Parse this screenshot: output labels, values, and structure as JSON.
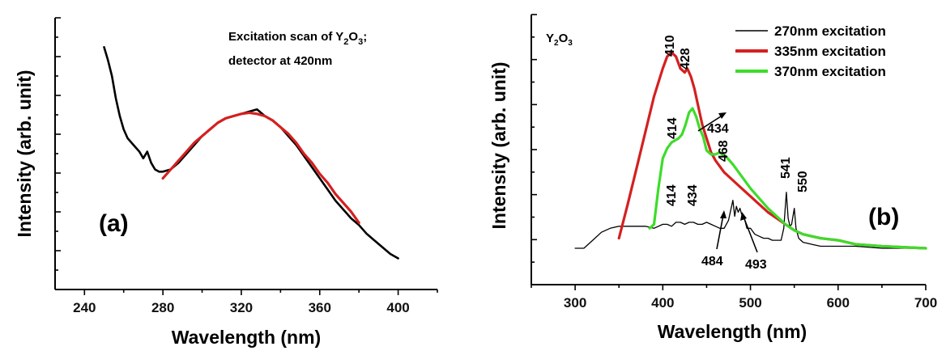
{
  "chart_data": [
    {
      "type": "line",
      "panel_label": "(a)",
      "xlabel": "Wavelength (nm)",
      "ylabel": "Intensity (arb. unit)",
      "xlim": [
        225,
        420
      ],
      "ylim": [
        0,
        1
      ],
      "x_ticks": [
        240,
        280,
        320,
        360,
        400
      ],
      "annotation": {
        "line1_prefix": "Excitation scan of Y",
        "sub1": "2",
        "mid": "O",
        "sub2": "3",
        "line1_suffix": ";",
        "line2": "detector at 420nm"
      },
      "series": [
        {
          "color": "#000000",
          "x": [
            250,
            252,
            254,
            256,
            258,
            260,
            262,
            264,
            266,
            268,
            270,
            272,
            274,
            276,
            278,
            280,
            284,
            288,
            292,
            296,
            300,
            304,
            308,
            312,
            316,
            320,
            324,
            328,
            332,
            336,
            340,
            344,
            348,
            352,
            356,
            360,
            364,
            368,
            372,
            376,
            380,
            384,
            388,
            392,
            396,
            400
          ],
          "y": [
            0.97,
            0.91,
            0.84,
            0.74,
            0.66,
            0.6,
            0.56,
            0.54,
            0.52,
            0.5,
            0.47,
            0.5,
            0.45,
            0.42,
            0.41,
            0.41,
            0.42,
            0.45,
            0.49,
            0.53,
            0.57,
            0.6,
            0.63,
            0.65,
            0.66,
            0.67,
            0.68,
            0.69,
            0.66,
            0.64,
            0.61,
            0.57,
            0.53,
            0.48,
            0.43,
            0.38,
            0.33,
            0.28,
            0.24,
            0.2,
            0.17,
            0.13,
            0.1,
            0.07,
            0.04,
            0.02
          ]
        },
        {
          "color": "#d42020",
          "x": [
            280,
            284,
            288,
            292,
            296,
            300,
            304,
            308,
            312,
            316,
            320,
            324,
            328,
            332,
            336,
            340,
            344,
            348,
            352,
            356,
            360,
            364,
            368,
            372,
            376,
            380
          ],
          "y": [
            0.38,
            0.42,
            0.46,
            0.5,
            0.54,
            0.57,
            0.6,
            0.63,
            0.65,
            0.66,
            0.67,
            0.675,
            0.67,
            0.66,
            0.64,
            0.61,
            0.58,
            0.54,
            0.49,
            0.45,
            0.4,
            0.36,
            0.31,
            0.27,
            0.23,
            0.18
          ]
        }
      ]
    },
    {
      "type": "line",
      "panel_label": "(b)",
      "corner_label": {
        "base": "Y",
        "sub1": "2",
        "mid": "O",
        "sub2": "3"
      },
      "xlabel": "Wavelength (nm)",
      "ylabel": "Intensity (arb. unit)",
      "xlim": [
        250,
        700
      ],
      "ylim": [
        0,
        1
      ],
      "x_ticks": [
        300,
        400,
        500,
        600,
        700
      ],
      "legend_position": "top-right",
      "series": [
        {
          "name": "270nm excitation",
          "color": "#000000",
          "x": [
            300,
            310,
            320,
            330,
            340,
            350,
            360,
            370,
            380,
            390,
            400,
            405,
            410,
            415,
            420,
            425,
            430,
            435,
            440,
            445,
            450,
            455,
            460,
            465,
            470,
            475,
            478,
            480,
            482,
            484,
            486,
            488,
            490,
            493,
            496,
            500,
            505,
            510,
            515,
            520,
            525,
            530,
            535,
            538,
            541,
            543,
            545,
            547,
            550,
            552,
            555,
            560,
            570,
            580,
            600,
            620,
            650,
            700
          ],
          "y": [
            0.0,
            0.0,
            0.04,
            0.08,
            0.1,
            0.11,
            0.11,
            0.11,
            0.11,
            0.1,
            0.12,
            0.12,
            0.11,
            0.13,
            0.13,
            0.12,
            0.13,
            0.13,
            0.12,
            0.12,
            0.13,
            0.12,
            0.11,
            0.1,
            0.1,
            0.14,
            0.2,
            0.24,
            0.16,
            0.21,
            0.18,
            0.2,
            0.17,
            0.15,
            0.1,
            0.1,
            0.07,
            0.06,
            0.05,
            0.05,
            0.04,
            0.04,
            0.04,
            0.1,
            0.28,
            0.15,
            0.11,
            0.12,
            0.2,
            0.1,
            0.05,
            0.03,
            0.02,
            0.01,
            0.01,
            0.01,
            0.0,
            0.0
          ]
        },
        {
          "name": "335nm excitation",
          "color": "#d42020",
          "x": [
            350,
            360,
            370,
            380,
            390,
            400,
            405,
            410,
            415,
            420,
            425,
            428,
            432,
            436,
            440,
            445,
            450,
            455,
            460,
            470,
            480,
            490,
            500,
            510,
            520,
            530,
            540,
            550,
            560,
            570,
            580,
            600,
            620,
            650,
            700
          ],
          "y": [
            0.05,
            0.22,
            0.4,
            0.58,
            0.76,
            0.9,
            0.96,
            0.98,
            0.96,
            0.9,
            0.88,
            0.9,
            0.86,
            0.8,
            0.72,
            0.62,
            0.55,
            0.48,
            0.44,
            0.38,
            0.34,
            0.3,
            0.26,
            0.22,
            0.18,
            0.15,
            0.12,
            0.09,
            0.07,
            0.06,
            0.05,
            0.04,
            0.02,
            0.01,
            0.0
          ]
        },
        {
          "name": "370nm excitation",
          "color": "#3ddc2a",
          "x": [
            385,
            390,
            395,
            400,
            405,
            410,
            414,
            418,
            422,
            426,
            430,
            434,
            438,
            442,
            446,
            450,
            455,
            460,
            465,
            468,
            472,
            476,
            480,
            490,
            500,
            510,
            520,
            530,
            540,
            550,
            560,
            570,
            580,
            600,
            620,
            650,
            700
          ],
          "y": [
            0.1,
            0.12,
            0.3,
            0.45,
            0.5,
            0.53,
            0.54,
            0.55,
            0.57,
            0.62,
            0.68,
            0.7,
            0.66,
            0.6,
            0.56,
            0.49,
            0.47,
            0.47,
            0.48,
            0.47,
            0.46,
            0.44,
            0.42,
            0.36,
            0.3,
            0.25,
            0.2,
            0.16,
            0.12,
            0.09,
            0.07,
            0.06,
            0.05,
            0.04,
            0.02,
            0.01,
            0.0
          ]
        }
      ],
      "peak_labels": [
        "410",
        "428",
        "434",
        "414",
        "468",
        "414",
        "434",
        "541",
        "550",
        "484",
        "493"
      ]
    }
  ]
}
